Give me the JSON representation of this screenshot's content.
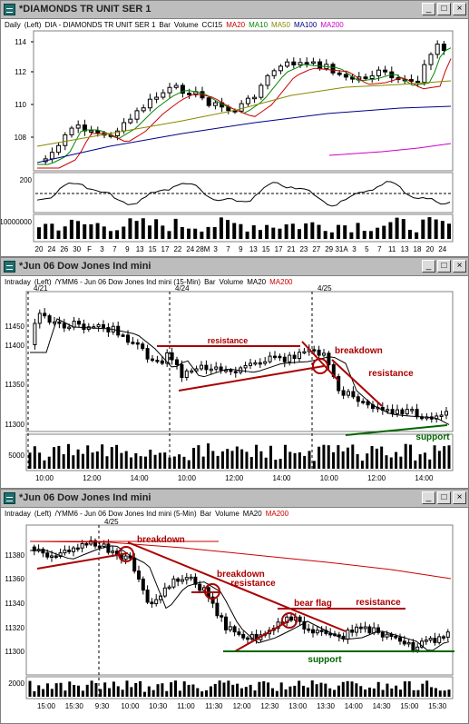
{
  "win1": {
    "title": "*DIAMONDS TR UNIT SER 1",
    "header": {
      "period": "Daily",
      "side": "(Left)",
      "symbol": "DIA - DIAMONDS TR UNIT SER 1",
      "type": "Bar",
      "volume": "Volume",
      "cci": "CCI15",
      "ma20": "MA20",
      "ma10": "MA10",
      "ma50": "MA50",
      "ma100": "MA100",
      "ma200": "MA200"
    },
    "price_ticks": [
      "114",
      "112",
      "110",
      "108"
    ],
    "cci_tick": "200",
    "vol_tick": "10000000",
    "date_ticks": [
      "20",
      "24",
      "26",
      "30",
      "F",
      "3",
      "7",
      "9",
      "13",
      "15",
      "17",
      "22",
      "24",
      "28M",
      "3",
      "7",
      "9",
      "13",
      "15",
      "17",
      "21",
      "23",
      "27",
      "29",
      "31A",
      "3",
      "5",
      "7",
      "11",
      "13",
      "18",
      "20",
      "24"
    ]
  },
  "win2": {
    "title": "*Jun 06  Dow Jones Ind mini",
    "header": {
      "period": "Intraday",
      "side": "(Left)",
      "symbol": "/YMM6 - Jun 06  Dow Jones Ind mini  (15-Min)",
      "type": "Bar",
      "volume": "Volume",
      "ma20": "MA20",
      "ma200": "MA200"
    },
    "date_markers": [
      "4/21",
      "4/24",
      "4/25"
    ],
    "price_ticks": [
      "11450",
      "11400",
      "11350",
      "11300"
    ],
    "vol_tick": "5000",
    "time_ticks": [
      "10:00",
      "12:00",
      "14:00",
      "10:00",
      "12:00",
      "14:00",
      "10:00",
      "12:00",
      "14:00"
    ],
    "annotations": {
      "resistance1": "resistance",
      "breakdown": "breakdown",
      "resistance2": "resistance",
      "support": "support"
    }
  },
  "win3": {
    "title": "*Jun 06  Dow Jones Ind mini",
    "header": {
      "period": "Intraday",
      "side": "(Left)",
      "symbol": "/YMM6 - Jun 06  Dow Jones Ind mini  (5-Min)",
      "type": "Bar",
      "volume": "Volume",
      "ma20": "MA20",
      "ma200": "MA200"
    },
    "date_markers": [
      "4/25"
    ],
    "price_ticks": [
      "11380",
      "11360",
      "11340",
      "11320",
      "11300"
    ],
    "vol_tick": "2000",
    "time_ticks": [
      "15:00",
      "15:30",
      "9:30",
      "10:00",
      "10:30",
      "11:00",
      "11:30",
      "12:00",
      "12:30",
      "13:00",
      "13:30",
      "14:00",
      "14:30",
      "15:00",
      "15:30"
    ],
    "annotations": {
      "breakdown1": "breakdown",
      "breakdown2": "breakdown",
      "resistance1": "resistance",
      "bear_flag": "bear flag",
      "resistance2": "resistance",
      "support": "support"
    }
  },
  "buttons": {
    "minimize": "_",
    "restore": "□",
    "close": "×"
  },
  "colors": {
    "ma20": "#cc0000",
    "ma10": "#008800",
    "ma50": "#888800",
    "ma100": "#000088",
    "ma200": "#cc00cc",
    "annot": "#aa0000",
    "support": "#006600"
  }
}
